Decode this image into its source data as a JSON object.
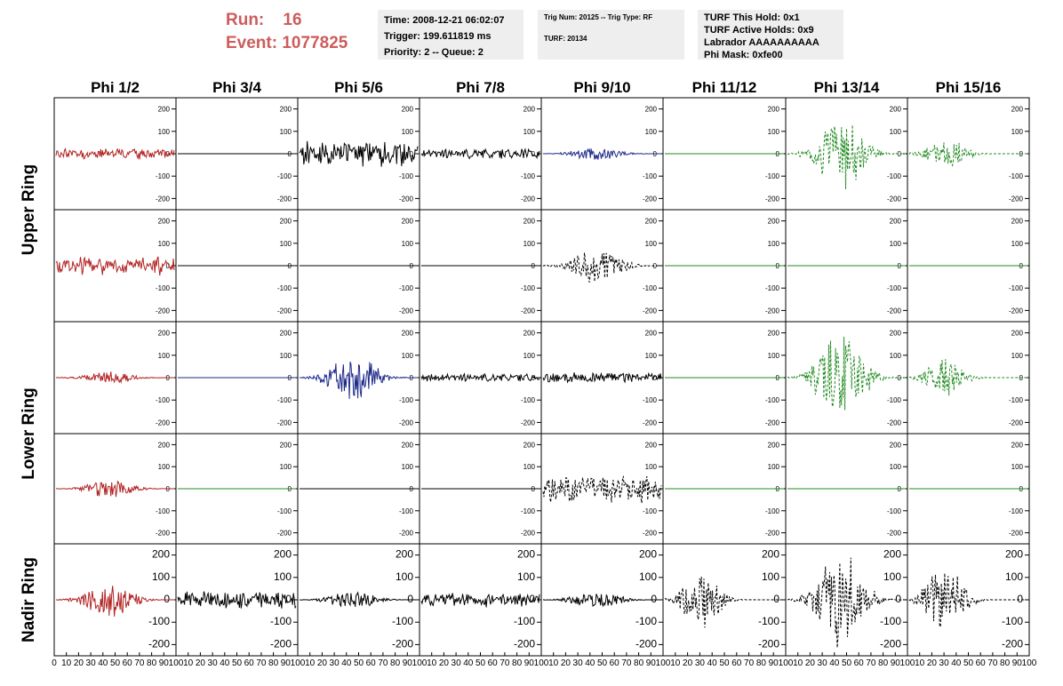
{
  "header": {
    "run_label": "Run:",
    "run_value": "16",
    "event_label": "Event:",
    "event_value": "1077825"
  },
  "info_time": {
    "time": "Time: 2008-12-21 06:02:07",
    "trigger": "Trigger: 199.611819 ms",
    "priority": "Priority: 2 -- Queue: 2"
  },
  "info_trig": {
    "trig": "Trig Num: 20125 -- Trig Type: RF",
    "turf": "TURF: 20134"
  },
  "info_turf": {
    "hold": "TURF This Hold: 0x1",
    "active": "TURF Active Holds: 0x9",
    "labrador": "Labrador AAAAAAAAAA",
    "phimask": "Phi Mask: 0xfe00"
  },
  "colors": {
    "red": "#b22222",
    "blue": "#1f2a8a",
    "green": "#228b22",
    "black": "#000000",
    "header_red": "#cd5c5c",
    "panel_bg": "#eeeeee"
  },
  "chart_data": {
    "type": "line",
    "columns": [
      "Phi 1/2",
      "Phi 3/4",
      "Phi 5/6",
      "Phi 7/8",
      "Phi 9/10",
      "Phi 11/12",
      "Phi 13/14",
      "Phi 15/16"
    ],
    "ring_labels": [
      "Upper Ring",
      "Lower Ring",
      "Nadir Ring"
    ],
    "ylim": [
      -250,
      250
    ],
    "yticks": [
      -200,
      -100,
      0,
      100,
      200
    ],
    "xlim": [
      0,
      100
    ],
    "xticks": [
      0,
      10,
      20,
      30,
      40,
      50,
      60,
      70,
      80,
      90,
      100
    ],
    "grid": false,
    "panels": [
      [
        {
          "color": "red",
          "style": "solid",
          "amp": 25,
          "env": "flat"
        },
        {
          "color": "black",
          "style": "solid",
          "amp": 0,
          "env": "flat"
        },
        {
          "color": "black",
          "style": "solid",
          "amp": 60,
          "env": "flat"
        },
        {
          "color": "black",
          "style": "solid",
          "amp": 25,
          "env": "flat"
        },
        {
          "color": "blue",
          "style": "solid",
          "amp": 30,
          "env": "mid"
        },
        {
          "color": "green",
          "style": "solid",
          "amp": 0,
          "env": "flat"
        },
        {
          "color": "green",
          "style": "dashed",
          "amp": 170,
          "env": "mid"
        },
        {
          "color": "green",
          "style": "dashed",
          "amp": 80,
          "env": "early"
        }
      ],
      [
        {
          "color": "red",
          "style": "solid",
          "amp": 45,
          "env": "flat"
        },
        {
          "color": "black",
          "style": "solid",
          "amp": 0,
          "env": "flat"
        },
        {
          "color": "black",
          "style": "solid",
          "amp": 0,
          "env": "flat"
        },
        {
          "color": "black",
          "style": "solid",
          "amp": 0,
          "env": "flat"
        },
        {
          "color": "black",
          "style": "dashed",
          "amp": 90,
          "env": "mid"
        },
        {
          "color": "green",
          "style": "solid",
          "amp": 0,
          "env": "flat"
        },
        {
          "color": "green",
          "style": "solid",
          "amp": 0,
          "env": "flat"
        },
        {
          "color": "green",
          "style": "solid",
          "amp": 0,
          "env": "flat"
        }
      ],
      [
        {
          "color": "red",
          "style": "solid",
          "amp": 30,
          "env": "mid"
        },
        {
          "color": "blue",
          "style": "solid",
          "amp": 0,
          "env": "flat"
        },
        {
          "color": "blue",
          "style": "solid",
          "amp": 110,
          "env": "mid"
        },
        {
          "color": "black",
          "style": "solid",
          "amp": 20,
          "env": "flat"
        },
        {
          "color": "black",
          "style": "solid",
          "amp": 25,
          "env": "flat"
        },
        {
          "color": "green",
          "style": "solid",
          "amp": 0,
          "env": "flat"
        },
        {
          "color": "green",
          "style": "dashed",
          "amp": 200,
          "env": "mid"
        },
        {
          "color": "green",
          "style": "dashed",
          "amp": 90,
          "env": "early"
        }
      ],
      [
        {
          "color": "red",
          "style": "solid",
          "amp": 40,
          "env": "mid"
        },
        {
          "color": "green",
          "style": "solid",
          "amp": 0,
          "env": "flat"
        },
        {
          "color": "black",
          "style": "solid",
          "amp": 0,
          "env": "flat"
        },
        {
          "color": "black",
          "style": "solid",
          "amp": 0,
          "env": "flat"
        },
        {
          "color": "black",
          "style": "dashed",
          "amp": 70,
          "env": "flat"
        },
        {
          "color": "green",
          "style": "solid",
          "amp": 0,
          "env": "flat"
        },
        {
          "color": "green",
          "style": "solid",
          "amp": 0,
          "env": "flat"
        },
        {
          "color": "green",
          "style": "solid",
          "amp": 0,
          "env": "flat"
        }
      ],
      [
        {
          "color": "red",
          "style": "solid",
          "amp": 80,
          "env": "mid"
        },
        {
          "color": "black",
          "style": "solid",
          "amp": 40,
          "env": "flat"
        },
        {
          "color": "black",
          "style": "solid",
          "amp": 40,
          "env": "mid"
        },
        {
          "color": "black",
          "style": "solid",
          "amp": 35,
          "env": "flat"
        },
        {
          "color": "black",
          "style": "solid",
          "amp": 40,
          "env": "mid"
        },
        {
          "color": "black",
          "style": "dashed",
          "amp": 130,
          "env": "early"
        },
        {
          "color": "black",
          "style": "dashed",
          "amp": 220,
          "env": "mid"
        },
        {
          "color": "black",
          "style": "dashed",
          "amp": 160,
          "env": "early"
        }
      ]
    ]
  }
}
